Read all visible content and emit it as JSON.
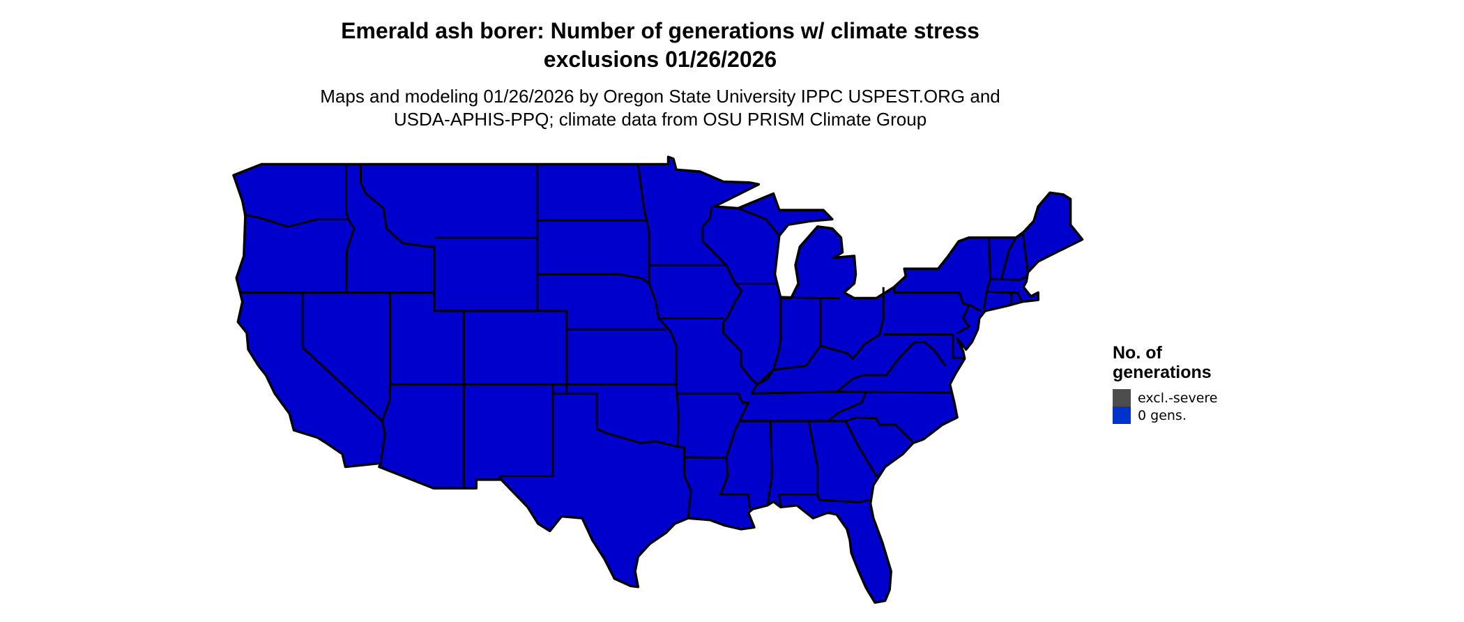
{
  "title_line1": "Emerald ash borer: Number of generations w/ climate stress",
  "title_line2": "exclusions 01/26/2026",
  "subtitle_line1": "Maps and modeling 01/26/2026 by Oregon State University IPPC USPEST.ORG and",
  "subtitle_line2": "USDA-APHIS-PPQ; climate data from OSU PRISM Climate Group",
  "map": {
    "region": "Contiguous United States",
    "fill_color": "#0000cc",
    "border_color": "#000000"
  },
  "legend": {
    "title": "No. of generations",
    "items": [
      {
        "label": "excl.-severe",
        "color": "#4d4d4d"
      },
      {
        "label": "0 gens.",
        "color": "#0033cc"
      }
    ]
  }
}
